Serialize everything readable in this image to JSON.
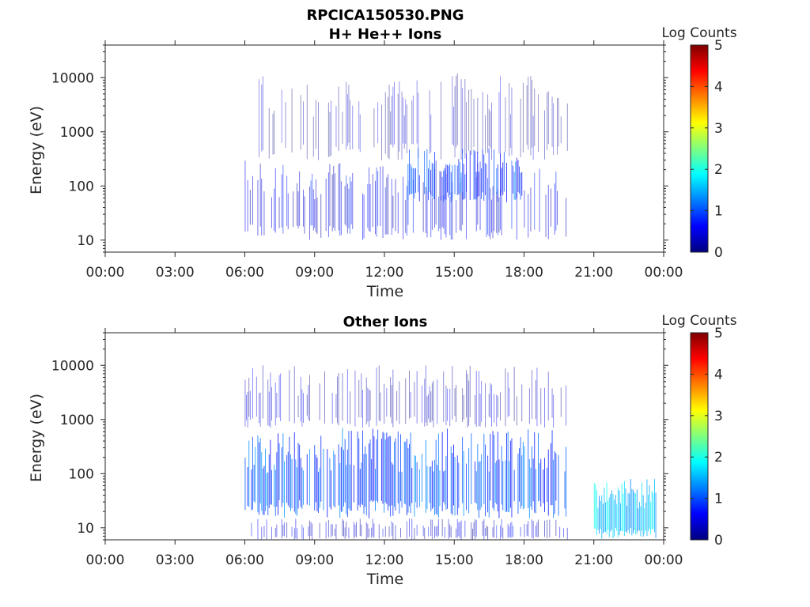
{
  "figure": {
    "title": "RPCICA150530.PNG"
  },
  "chart_data": [
    {
      "type": "heatmap",
      "title": "H+ He++ Ions",
      "xlabel": "Time",
      "ylabel": "Energy (eV)",
      "x_ticks": [
        "00:00",
        "03:00",
        "06:00",
        "09:00",
        "12:00",
        "15:00",
        "18:00",
        "21:00",
        "00:00"
      ],
      "xlim_hours": [
        0,
        24
      ],
      "y_scale": "log",
      "y_ticks": [
        10,
        100,
        1000,
        10000
      ],
      "y_tick_labels": [
        "10",
        "100",
        "1000",
        "10000"
      ],
      "ylim": [
        6,
        40000
      ],
      "colorbar": {
        "label": "Log Counts",
        "range": [
          0,
          5
        ],
        "ticks": [
          "0",
          "1",
          "2",
          "3",
          "4",
          "5"
        ],
        "colormap": [
          "#00007f",
          "#0000ff",
          "#007fff",
          "#00ffff",
          "#7fff7f",
          "#ffff00",
          "#ff7f00",
          "#ff0000",
          "#7f0000"
        ]
      },
      "regions": [
        {
          "t_start": 6.0,
          "t_end": 19.9,
          "e_min": 10,
          "e_max": 300,
          "level": 0.5
        },
        {
          "t_start": 6.0,
          "t_end": 19.9,
          "e_min": 300,
          "e_max": 12000,
          "level": 0.2
        },
        {
          "t_start": 13.0,
          "t_end": 18.0,
          "e_min": 50,
          "e_max": 500,
          "level": 0.9
        }
      ]
    },
    {
      "type": "heatmap",
      "title": "Other Ions",
      "xlabel": "Time",
      "ylabel": "Energy (eV)",
      "x_ticks": [
        "00:00",
        "03:00",
        "06:00",
        "09:00",
        "12:00",
        "15:00",
        "18:00",
        "21:00",
        "00:00"
      ],
      "xlim_hours": [
        0,
        24
      ],
      "y_scale": "log",
      "y_ticks": [
        10,
        100,
        1000,
        10000
      ],
      "y_tick_labels": [
        "10",
        "100",
        "1000",
        "10000"
      ],
      "ylim": [
        6,
        40000
      ],
      "colorbar": {
        "label": "Log Counts",
        "range": [
          0,
          5
        ],
        "ticks": [
          "0",
          "1",
          "2",
          "3",
          "4",
          "5"
        ],
        "colormap": [
          "#00007f",
          "#0000ff",
          "#007fff",
          "#00ffff",
          "#7fff7f",
          "#ffff00",
          "#ff7f00",
          "#ff0000",
          "#7f0000"
        ]
      },
      "regions": [
        {
          "t_start": 6.0,
          "t_end": 19.9,
          "e_min": 15,
          "e_max": 700,
          "level": 1.0
        },
        {
          "t_start": 6.0,
          "t_end": 19.9,
          "e_min": 700,
          "e_max": 10000,
          "level": 0.3
        },
        {
          "t_start": 6.0,
          "t_end": 19.9,
          "e_min": 6,
          "e_max": 15,
          "level": 0.4
        },
        {
          "t_start": 21.0,
          "t_end": 23.7,
          "e_min": 6,
          "e_max": 80,
          "level": 1.6
        }
      ]
    }
  ]
}
